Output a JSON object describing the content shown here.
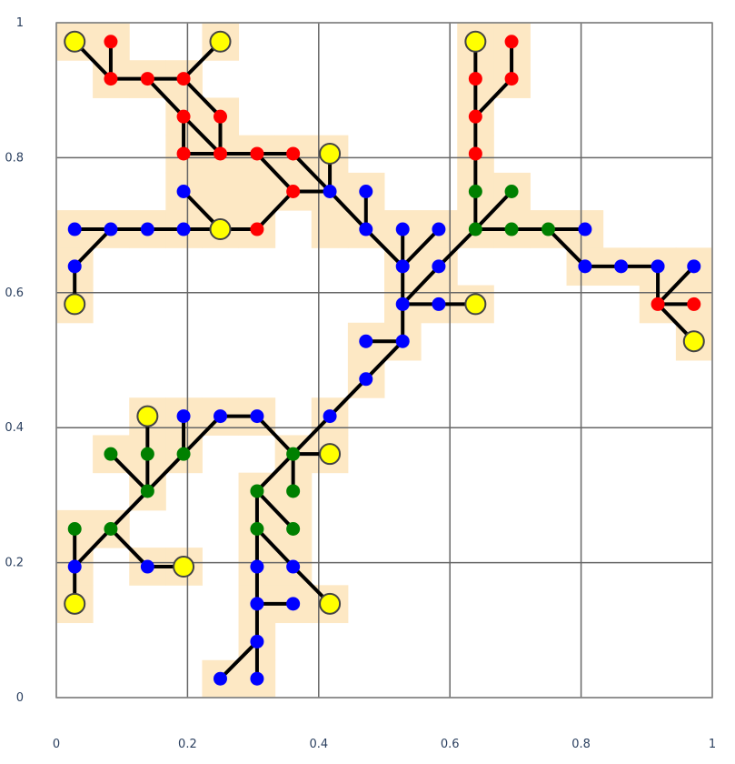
{
  "chart_data": {
    "type": "scatter",
    "subtype": "tree-network",
    "xlim": [
      0,
      1
    ],
    "ylim": [
      0,
      1
    ],
    "grid": true,
    "x_ticks": [
      "0",
      "0.2",
      "0.4",
      "0.6",
      "0.8",
      "1"
    ],
    "y_ticks": [
      "0",
      "0.2",
      "0.4",
      "0.6",
      "0.8",
      "1"
    ],
    "colors": {
      "highlight": "#fde8c4",
      "edge": "#000000",
      "grid": "#666666",
      "frame": "#888888",
      "red": "#ff0000",
      "blue": "#0000ff",
      "green": "#008000",
      "yellow": "#ffff00"
    },
    "nodes": [
      {
        "id": "r1",
        "x": 0.028,
        "y": 0.972,
        "c": "yellow"
      },
      {
        "id": "r2",
        "x": 0.083,
        "y": 0.972,
        "c": "red"
      },
      {
        "id": "r3",
        "x": 0.083,
        "y": 0.917,
        "c": "red"
      },
      {
        "id": "r4",
        "x": 0.139,
        "y": 0.917,
        "c": "red"
      },
      {
        "id": "r5",
        "x": 0.25,
        "y": 0.972,
        "c": "yellow"
      },
      {
        "id": "r6",
        "x": 0.194,
        "y": 0.917,
        "c": "red"
      },
      {
        "id": "r7",
        "x": 0.194,
        "y": 0.861,
        "c": "red"
      },
      {
        "id": "r8",
        "x": 0.25,
        "y": 0.861,
        "c": "red"
      },
      {
        "id": "r9",
        "x": 0.194,
        "y": 0.806,
        "c": "red"
      },
      {
        "id": "r10",
        "x": 0.25,
        "y": 0.806,
        "c": "red"
      },
      {
        "id": "r11",
        "x": 0.306,
        "y": 0.806,
        "c": "red"
      },
      {
        "id": "r12",
        "x": 0.361,
        "y": 0.806,
        "c": "red"
      },
      {
        "id": "r13",
        "x": 0.417,
        "y": 0.806,
        "c": "yellow"
      },
      {
        "id": "r14",
        "x": 0.361,
        "y": 0.75,
        "c": "red"
      },
      {
        "id": "b1",
        "x": 0.417,
        "y": 0.75,
        "c": "blue"
      },
      {
        "id": "b2",
        "x": 0.472,
        "y": 0.75,
        "c": "blue"
      },
      {
        "id": "b3",
        "x": 0.194,
        "y": 0.75,
        "c": "blue"
      },
      {
        "id": "b4",
        "x": 0.028,
        "y": 0.694,
        "c": "blue"
      },
      {
        "id": "b5",
        "x": 0.083,
        "y": 0.694,
        "c": "blue"
      },
      {
        "id": "b6",
        "x": 0.139,
        "y": 0.694,
        "c": "blue"
      },
      {
        "id": "b7",
        "x": 0.194,
        "y": 0.694,
        "c": "blue"
      },
      {
        "id": "y1",
        "x": 0.25,
        "y": 0.694,
        "c": "yellow"
      },
      {
        "id": "r15",
        "x": 0.306,
        "y": 0.694,
        "c": "red"
      },
      {
        "id": "b8",
        "x": 0.028,
        "y": 0.639,
        "c": "blue"
      },
      {
        "id": "y2",
        "x": 0.028,
        "y": 0.583,
        "c": "yellow"
      },
      {
        "id": "b9",
        "x": 0.472,
        "y": 0.694,
        "c": "blue"
      },
      {
        "id": "b10",
        "x": 0.528,
        "y": 0.694,
        "c": "blue"
      },
      {
        "id": "b11",
        "x": 0.583,
        "y": 0.694,
        "c": "blue"
      },
      {
        "id": "b12",
        "x": 0.528,
        "y": 0.639,
        "c": "blue"
      },
      {
        "id": "b13",
        "x": 0.583,
        "y": 0.639,
        "c": "blue"
      },
      {
        "id": "b14",
        "x": 0.528,
        "y": 0.583,
        "c": "blue"
      },
      {
        "id": "b15",
        "x": 0.583,
        "y": 0.583,
        "c": "blue"
      },
      {
        "id": "y3",
        "x": 0.639,
        "y": 0.583,
        "c": "yellow"
      },
      {
        "id": "b16",
        "x": 0.472,
        "y": 0.528,
        "c": "blue"
      },
      {
        "id": "b17",
        "x": 0.528,
        "y": 0.528,
        "c": "blue"
      },
      {
        "id": "b18",
        "x": 0.472,
        "y": 0.472,
        "c": "blue"
      },
      {
        "id": "b19",
        "x": 0.417,
        "y": 0.417,
        "c": "blue"
      },
      {
        "id": "y4",
        "x": 0.639,
        "y": 0.972,
        "c": "yellow"
      },
      {
        "id": "r16",
        "x": 0.694,
        "y": 0.972,
        "c": "red"
      },
      {
        "id": "r17",
        "x": 0.639,
        "y": 0.917,
        "c": "red"
      },
      {
        "id": "r18",
        "x": 0.694,
        "y": 0.917,
        "c": "red"
      },
      {
        "id": "r19",
        "x": 0.639,
        "y": 0.861,
        "c": "red"
      },
      {
        "id": "r20",
        "x": 0.639,
        "y": 0.806,
        "c": "red"
      },
      {
        "id": "g1",
        "x": 0.639,
        "y": 0.75,
        "c": "green"
      },
      {
        "id": "g2",
        "x": 0.694,
        "y": 0.75,
        "c": "green"
      },
      {
        "id": "g3",
        "x": 0.639,
        "y": 0.694,
        "c": "green"
      },
      {
        "id": "g4",
        "x": 0.694,
        "y": 0.694,
        "c": "green"
      },
      {
        "id": "g5",
        "x": 0.75,
        "y": 0.694,
        "c": "green"
      },
      {
        "id": "b20",
        "x": 0.806,
        "y": 0.694,
        "c": "blue"
      },
      {
        "id": "b21",
        "x": 0.806,
        "y": 0.639,
        "c": "blue"
      },
      {
        "id": "b22",
        "x": 0.861,
        "y": 0.639,
        "c": "blue"
      },
      {
        "id": "b23",
        "x": 0.917,
        "y": 0.639,
        "c": "blue"
      },
      {
        "id": "b24",
        "x": 0.972,
        "y": 0.639,
        "c": "blue"
      },
      {
        "id": "r21",
        "x": 0.917,
        "y": 0.583,
        "c": "red"
      },
      {
        "id": "r22",
        "x": 0.972,
        "y": 0.583,
        "c": "red"
      },
      {
        "id": "y5",
        "x": 0.972,
        "y": 0.528,
        "c": "yellow"
      },
      {
        "id": "y6",
        "x": 0.139,
        "y": 0.417,
        "c": "yellow"
      },
      {
        "id": "b25",
        "x": 0.194,
        "y": 0.417,
        "c": "blue"
      },
      {
        "id": "b26",
        "x": 0.25,
        "y": 0.417,
        "c": "blue"
      },
      {
        "id": "b27",
        "x": 0.306,
        "y": 0.417,
        "c": "blue"
      },
      {
        "id": "g6",
        "x": 0.083,
        "y": 0.361,
        "c": "green"
      },
      {
        "id": "g7",
        "x": 0.139,
        "y": 0.361,
        "c": "green"
      },
      {
        "id": "g8",
        "x": 0.194,
        "y": 0.361,
        "c": "green"
      },
      {
        "id": "g9",
        "x": 0.361,
        "y": 0.361,
        "c": "green"
      },
      {
        "id": "y7",
        "x": 0.417,
        "y": 0.361,
        "c": "yellow"
      },
      {
        "id": "g10",
        "x": 0.139,
        "y": 0.306,
        "c": "green"
      },
      {
        "id": "g11",
        "x": 0.306,
        "y": 0.306,
        "c": "green"
      },
      {
        "id": "g12",
        "x": 0.361,
        "y": 0.306,
        "c": "green"
      },
      {
        "id": "g13",
        "x": 0.028,
        "y": 0.25,
        "c": "green"
      },
      {
        "id": "g14",
        "x": 0.083,
        "y": 0.25,
        "c": "green"
      },
      {
        "id": "g15",
        "x": 0.306,
        "y": 0.25,
        "c": "green"
      },
      {
        "id": "g16",
        "x": 0.361,
        "y": 0.25,
        "c": "green"
      },
      {
        "id": "b28",
        "x": 0.028,
        "y": 0.194,
        "c": "blue"
      },
      {
        "id": "b29",
        "x": 0.139,
        "y": 0.194,
        "c": "blue"
      },
      {
        "id": "y8",
        "x": 0.194,
        "y": 0.194,
        "c": "yellow"
      },
      {
        "id": "b30",
        "x": 0.306,
        "y": 0.194,
        "c": "blue"
      },
      {
        "id": "b31",
        "x": 0.361,
        "y": 0.194,
        "c": "blue"
      },
      {
        "id": "y9",
        "x": 0.028,
        "y": 0.139,
        "c": "yellow"
      },
      {
        "id": "b32",
        "x": 0.306,
        "y": 0.139,
        "c": "blue"
      },
      {
        "id": "b33",
        "x": 0.361,
        "y": 0.139,
        "c": "blue"
      },
      {
        "id": "y10",
        "x": 0.417,
        "y": 0.139,
        "c": "yellow"
      },
      {
        "id": "b34",
        "x": 0.306,
        "y": 0.083,
        "c": "blue"
      },
      {
        "id": "b35",
        "x": 0.25,
        "y": 0.028,
        "c": "blue"
      },
      {
        "id": "b36",
        "x": 0.306,
        "y": 0.028,
        "c": "blue"
      }
    ],
    "edges": [
      [
        "r1",
        "r3"
      ],
      [
        "r2",
        "r3"
      ],
      [
        "r3",
        "r4"
      ],
      [
        "r4",
        "r6"
      ],
      [
        "r5",
        "r6"
      ],
      [
        "r4",
        "r7"
      ],
      [
        "r6",
        "r8"
      ],
      [
        "r7",
        "r9"
      ],
      [
        "r7",
        "r10"
      ],
      [
        "r8",
        "r10"
      ],
      [
        "r9",
        "r10"
      ],
      [
        "r10",
        "r11"
      ],
      [
        "r11",
        "r12"
      ],
      [
        "r11",
        "r14"
      ],
      [
        "r12",
        "b1"
      ],
      [
        "r13",
        "b1"
      ],
      [
        "r14",
        "b1"
      ],
      [
        "r14",
        "r15"
      ],
      [
        "r15",
        "y1"
      ],
      [
        "y1",
        "b3"
      ],
      [
        "y1",
        "b7"
      ],
      [
        "b7",
        "b6"
      ],
      [
        "b6",
        "b5"
      ],
      [
        "b5",
        "b4"
      ],
      [
        "b5",
        "b8"
      ],
      [
        "b8",
        "y2"
      ],
      [
        "b1",
        "b9"
      ],
      [
        "b2",
        "b9"
      ],
      [
        "b9",
        "b12"
      ],
      [
        "b10",
        "b12"
      ],
      [
        "b11",
        "b12"
      ],
      [
        "b12",
        "b14"
      ],
      [
        "b13",
        "b14"
      ],
      [
        "b14",
        "b15"
      ],
      [
        "b15",
        "y3"
      ],
      [
        "b14",
        "b17"
      ],
      [
        "b16",
        "b17"
      ],
      [
        "b17",
        "b18"
      ],
      [
        "b18",
        "b19"
      ],
      [
        "b19",
        "g9"
      ],
      [
        "g9",
        "y7"
      ],
      [
        "g9",
        "b27"
      ],
      [
        "g9",
        "g12"
      ],
      [
        "g9",
        "g11"
      ],
      [
        "b27",
        "b26"
      ],
      [
        "b26",
        "g8"
      ],
      [
        "g8",
        "g10"
      ],
      [
        "g10",
        "g7"
      ],
      [
        "g10",
        "g6"
      ],
      [
        "g7",
        "y6"
      ],
      [
        "b25",
        "g8"
      ],
      [
        "g10",
        "g14"
      ],
      [
        "g14",
        "b28"
      ],
      [
        "g13",
        "b28"
      ],
      [
        "b28",
        "y9"
      ],
      [
        "g14",
        "b29"
      ],
      [
        "b29",
        "y8"
      ],
      [
        "g11",
        "g15"
      ],
      [
        "g11",
        "g16"
      ],
      [
        "g15",
        "b30"
      ],
      [
        "g15",
        "b31"
      ],
      [
        "b31",
        "y10"
      ],
      [
        "b30",
        "b32"
      ],
      [
        "b32",
        "b34"
      ],
      [
        "b34",
        "b36"
      ],
      [
        "b34",
        "b35"
      ],
      [
        "b32",
        "b33"
      ],
      [
        "b13",
        "g3"
      ],
      [
        "g3",
        "g1"
      ],
      [
        "g3",
        "g2"
      ],
      [
        "g1",
        "r20"
      ],
      [
        "r20",
        "r19"
      ],
      [
        "r19",
        "r17"
      ],
      [
        "r19",
        "r18"
      ],
      [
        "r18",
        "r16"
      ],
      [
        "r17",
        "y4"
      ],
      [
        "g3",
        "g4"
      ],
      [
        "g4",
        "g5"
      ],
      [
        "g5",
        "b20"
      ],
      [
        "g5",
        "b21"
      ],
      [
        "b21",
        "b22"
      ],
      [
        "b22",
        "b23"
      ],
      [
        "b23",
        "r21"
      ],
      [
        "b24",
        "r21"
      ],
      [
        "r21",
        "r22"
      ],
      [
        "r21",
        "y5"
      ]
    ],
    "highlight_cells": [
      [
        0,
        17
      ],
      [
        1,
        17
      ],
      [
        1,
        16
      ],
      [
        2,
        16
      ],
      [
        3,
        16
      ],
      [
        4,
        17
      ],
      [
        3,
        15
      ],
      [
        4,
        15
      ],
      [
        3,
        14
      ],
      [
        4,
        14
      ],
      [
        5,
        14
      ],
      [
        6,
        14
      ],
      [
        7,
        14
      ],
      [
        3,
        13
      ],
      [
        4,
        13
      ],
      [
        5,
        13
      ],
      [
        6,
        13
      ],
      [
        7,
        13
      ],
      [
        8,
        13
      ],
      [
        0,
        12
      ],
      [
        1,
        12
      ],
      [
        2,
        12
      ],
      [
        3,
        12
      ],
      [
        4,
        12
      ],
      [
        5,
        12
      ],
      [
        0,
        11
      ],
      [
        0,
        10
      ],
      [
        7,
        12
      ],
      [
        8,
        12
      ],
      [
        9,
        12
      ],
      [
        10,
        12
      ],
      [
        9,
        11
      ],
      [
        10,
        11
      ],
      [
        9,
        10
      ],
      [
        10,
        10
      ],
      [
        11,
        10
      ],
      [
        8,
        9
      ],
      [
        9,
        9
      ],
      [
        8,
        8
      ],
      [
        7,
        7
      ],
      [
        11,
        17
      ],
      [
        12,
        17
      ],
      [
        11,
        16
      ],
      [
        12,
        16
      ],
      [
        11,
        15
      ],
      [
        11,
        14
      ],
      [
        11,
        13
      ],
      [
        12,
        13
      ],
      [
        11,
        12
      ],
      [
        12,
        12
      ],
      [
        13,
        12
      ],
      [
        14,
        12
      ],
      [
        14,
        11
      ],
      [
        15,
        11
      ],
      [
        16,
        11
      ],
      [
        17,
        11
      ],
      [
        16,
        10
      ],
      [
        17,
        10
      ],
      [
        17,
        9
      ],
      [
        2,
        7
      ],
      [
        3,
        7
      ],
      [
        4,
        7
      ],
      [
        5,
        7
      ],
      [
        1,
        6
      ],
      [
        2,
        6
      ],
      [
        3,
        6
      ],
      [
        6,
        6
      ],
      [
        7,
        6
      ],
      [
        2,
        5
      ],
      [
        5,
        5
      ],
      [
        6,
        5
      ],
      [
        0,
        4
      ],
      [
        1,
        4
      ],
      [
        5,
        4
      ],
      [
        6,
        4
      ],
      [
        0,
        3
      ],
      [
        2,
        3
      ],
      [
        3,
        3
      ],
      [
        5,
        3
      ],
      [
        6,
        3
      ],
      [
        0,
        2
      ],
      [
        5,
        2
      ],
      [
        6,
        2
      ],
      [
        7,
        2
      ],
      [
        5,
        1
      ],
      [
        4,
        0
      ],
      [
        5,
        0
      ]
    ]
  }
}
